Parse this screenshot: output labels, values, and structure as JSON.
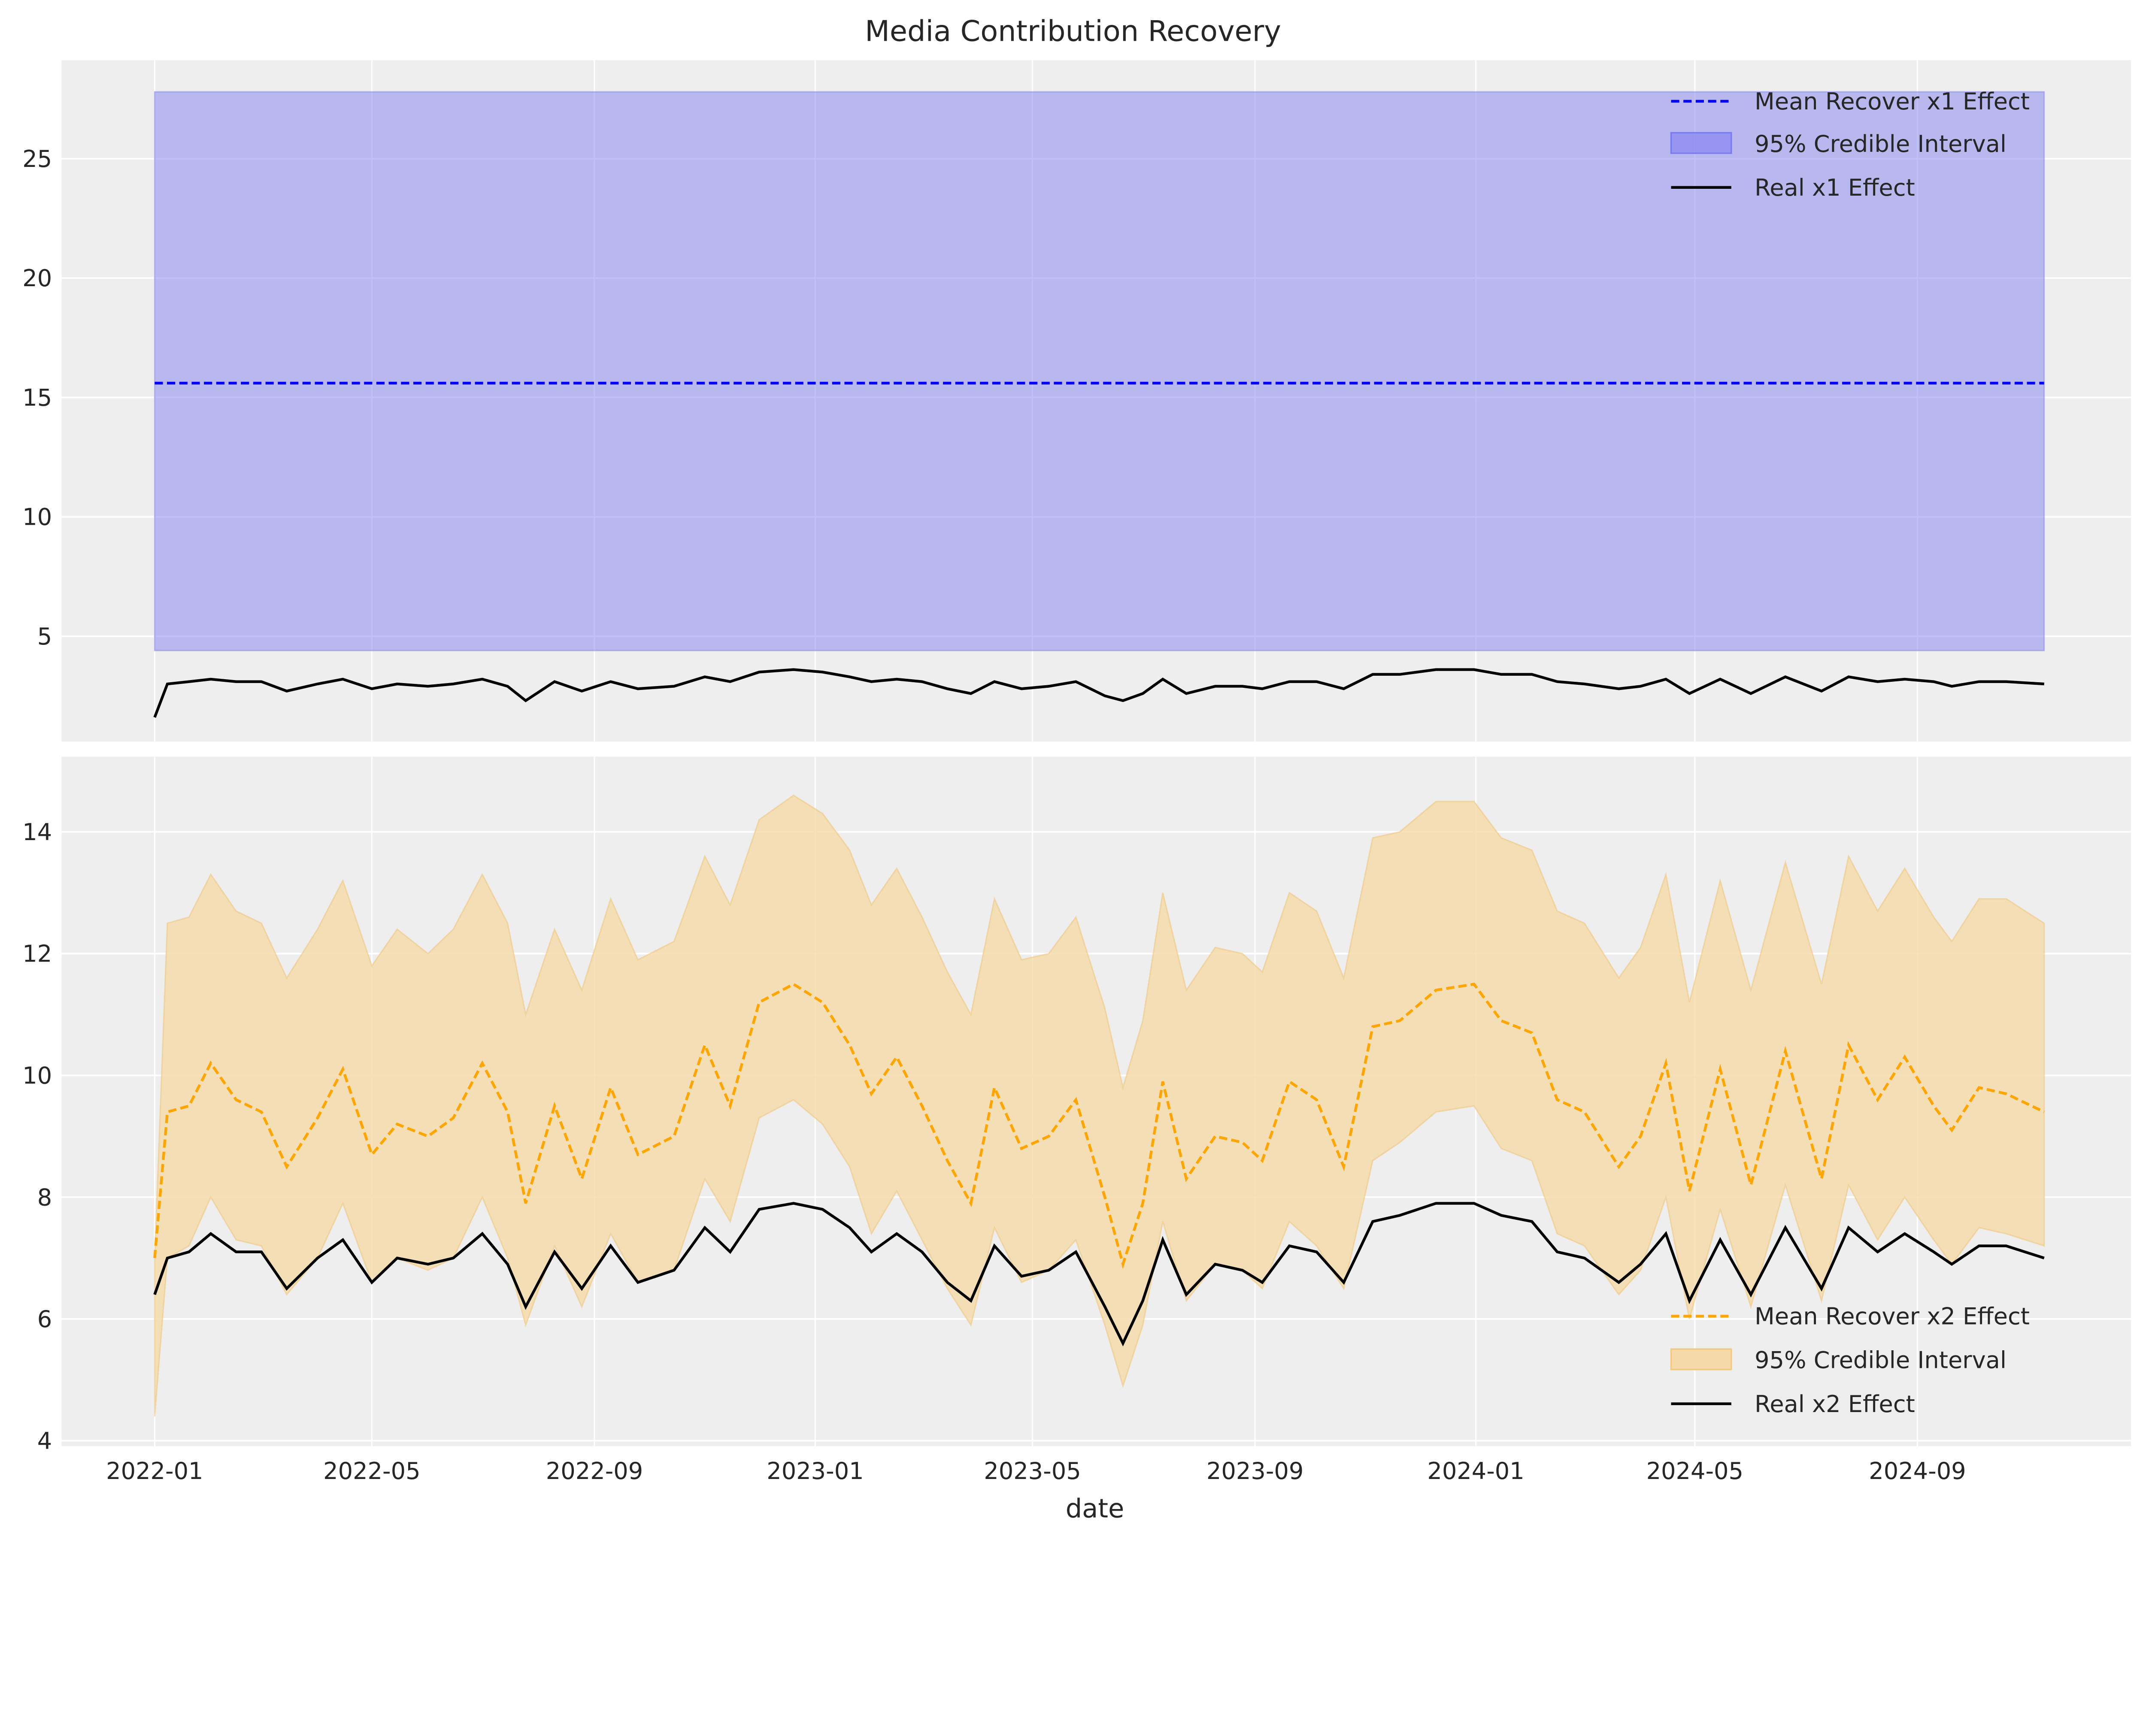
{
  "title": "Media Contribution Recovery",
  "colors": {
    "x1": "#0000ff",
    "x1_band": "#8c8cf0",
    "x2": "#ffa500",
    "x2_band": "#f5d9a8",
    "real": "#000000",
    "panel_bg": "#eeeeee",
    "grid": "#ffffff"
  },
  "chart_data": [
    {
      "type": "line",
      "panel": "top",
      "xlabel": "",
      "ylabel": "",
      "ylim": [
        0.9,
        28.3
      ],
      "yticks": [
        "5",
        "10",
        "15",
        "20",
        "25"
      ],
      "grid": true,
      "legend_position": "top-right",
      "legend": [
        "Mean Recover x1 Effect",
        "95% Credible Interval",
        "Real x1 Effect"
      ],
      "mean": 15.6,
      "ci_lower": 4.4,
      "ci_upper": 27.8,
      "real": [
        1.6,
        3.0,
        3.1,
        3.2,
        3.1,
        3.1,
        2.7,
        3.0,
        3.2,
        2.8,
        3.0,
        2.9,
        3.0,
        3.2,
        2.9,
        2.3,
        3.1,
        2.7,
        3.1,
        2.8,
        2.9,
        3.3,
        3.1,
        3.5,
        3.6,
        3.5,
        3.3,
        3.1,
        3.2,
        3.1,
        2.8,
        2.6,
        3.1,
        2.8,
        2.9,
        3.1,
        2.5,
        2.3,
        2.6,
        3.2,
        2.6,
        2.9,
        2.9,
        2.8,
        3.1,
        3.1,
        2.8,
        3.4,
        3.4,
        3.6,
        3.6,
        3.4,
        3.4,
        3.1,
        3.0,
        2.8,
        2.9,
        3.2,
        2.6,
        3.2,
        2.6,
        3.3,
        2.7,
        3.3,
        3.1,
        3.2,
        3.1,
        2.9,
        3.1,
        3.1,
        3.0
      ]
    },
    {
      "type": "line",
      "panel": "bottom",
      "xlabel": "date",
      "ylabel": "",
      "ylim": [
        3.95,
        15.2
      ],
      "yticks": [
        "4",
        "6",
        "8",
        "10",
        "12",
        "14"
      ],
      "xticks": [
        "2022-01",
        "2022-05",
        "2022-09",
        "2023-01",
        "2023-05",
        "2023-09",
        "2024-01",
        "2024-05",
        "2024-09"
      ],
      "grid": true,
      "legend_position": "bottom-right",
      "legend": [
        "Mean Recover x2 Effect",
        "95% Credible Interval",
        "Real x2 Effect"
      ],
      "x": [
        "2022-01-01",
        "2022-01-08",
        "2022-01-20",
        "2022-02-01",
        "2022-02-15",
        "2022-03-01",
        "2022-03-15",
        "2022-04-01",
        "2022-04-15",
        "2022-05-01",
        "2022-05-15",
        "2022-06-01",
        "2022-06-15",
        "2022-07-01",
        "2022-07-15",
        "2022-07-25",
        "2022-08-10",
        "2022-08-25",
        "2022-09-10",
        "2022-09-25",
        "2022-10-15",
        "2022-11-01",
        "2022-11-15",
        "2022-12-01",
        "2022-12-20",
        "2023-01-05",
        "2023-01-20",
        "2023-02-01",
        "2023-02-15",
        "2023-03-01",
        "2023-03-15",
        "2023-03-28",
        "2023-04-10",
        "2023-04-25",
        "2023-05-10",
        "2023-05-25",
        "2023-06-10",
        "2023-06-20",
        "2023-07-01",
        "2023-07-12",
        "2023-07-25",
        "2023-08-10",
        "2023-08-25",
        "2023-09-05",
        "2023-09-20",
        "2023-10-05",
        "2023-10-20",
        "2023-11-05",
        "2023-11-20",
        "2023-12-10",
        "2023-12-31",
        "2024-01-15",
        "2024-02-01",
        "2024-02-15",
        "2024-03-01",
        "2024-03-20",
        "2024-04-01",
        "2024-04-15",
        "2024-04-28",
        "2024-05-15",
        "2024-06-01",
        "2024-06-20",
        "2024-07-10",
        "2024-07-25",
        "2024-08-10",
        "2024-08-25",
        "2024-09-10",
        "2024-09-20",
        "2024-10-05",
        "2024-10-20",
        "2024-11-10"
      ],
      "mean": [
        7.0,
        9.4,
        9.5,
        10.2,
        9.6,
        9.4,
        8.5,
        9.3,
        10.1,
        8.7,
        9.2,
        9.0,
        9.3,
        10.2,
        9.4,
        7.9,
        9.5,
        8.3,
        9.8,
        8.7,
        9.0,
        10.5,
        9.5,
        11.2,
        11.5,
        11.2,
        10.5,
        9.7,
        10.3,
        9.5,
        8.6,
        7.9,
        9.8,
        8.8,
        9.0,
        9.6,
        8.0,
        6.9,
        7.9,
        9.9,
        8.3,
        9.0,
        8.9,
        8.6,
        9.9,
        9.6,
        8.5,
        10.8,
        10.9,
        11.4,
        11.5,
        10.9,
        10.7,
        9.6,
        9.4,
        8.5,
        9.0,
        10.2,
        8.1,
        10.1,
        8.2,
        10.4,
        8.3,
        10.5,
        9.6,
        10.3,
        9.5,
        9.1,
        9.8,
        9.7,
        9.4
      ],
      "ci_lower": [
        4.4,
        7.0,
        7.2,
        8.0,
        7.3,
        7.2,
        6.4,
        7.0,
        7.9,
        6.6,
        7.0,
        6.8,
        7.0,
        8.0,
        7.0,
        5.9,
        7.2,
        6.2,
        7.4,
        6.6,
        6.8,
        8.3,
        7.6,
        9.3,
        9.6,
        9.2,
        8.5,
        7.4,
        8.1,
        7.3,
        6.5,
        5.9,
        7.5,
        6.6,
        6.8,
        7.3,
        5.9,
        4.9,
        5.9,
        7.6,
        6.3,
        6.9,
        6.8,
        6.5,
        7.6,
        7.2,
        6.5,
        8.6,
        8.9,
        9.4,
        9.5,
        8.8,
        8.6,
        7.4,
        7.2,
        6.4,
        6.8,
        8.0,
        6.0,
        7.8,
        6.2,
        8.2,
        6.3,
        8.2,
        7.3,
        8.0,
        7.3,
        6.9,
        7.5,
        7.4,
        7.2
      ],
      "ci_upper": [
        7.0,
        12.5,
        12.6,
        13.3,
        12.7,
        12.5,
        11.6,
        12.4,
        13.2,
        11.8,
        12.4,
        12.0,
        12.4,
        13.3,
        12.5,
        11.0,
        12.4,
        11.4,
        12.9,
        11.9,
        12.2,
        13.6,
        12.8,
        14.2,
        14.6,
        14.3,
        13.7,
        12.8,
        13.4,
        12.6,
        11.7,
        11.0,
        12.9,
        11.9,
        12.0,
        12.6,
        11.1,
        9.8,
        10.9,
        13.0,
        11.4,
        12.1,
        12.0,
        11.7,
        13.0,
        12.7,
        11.6,
        13.9,
        14.0,
        14.5,
        14.5,
        13.9,
        13.7,
        12.7,
        12.5,
        11.6,
        12.1,
        13.3,
        11.2,
        13.2,
        11.4,
        13.5,
        11.5,
        13.6,
        12.7,
        13.4,
        12.6,
        12.2,
        12.9,
        12.9,
        12.5
      ],
      "real": [
        6.4,
        7.0,
        7.1,
        7.4,
        7.1,
        7.1,
        6.5,
        7.0,
        7.3,
        6.6,
        7.0,
        6.9,
        7.0,
        7.4,
        6.9,
        6.2,
        7.1,
        6.5,
        7.2,
        6.6,
        6.8,
        7.5,
        7.1,
        7.8,
        7.9,
        7.8,
        7.5,
        7.1,
        7.4,
        7.1,
        6.6,
        6.3,
        7.2,
        6.7,
        6.8,
        7.1,
        6.2,
        5.6,
        6.3,
        7.3,
        6.4,
        6.9,
        6.8,
        6.6,
        7.2,
        7.1,
        6.6,
        7.6,
        7.7,
        7.9,
        7.9,
        7.7,
        7.6,
        7.1,
        7.0,
        6.6,
        6.9,
        7.4,
        6.3,
        7.3,
        6.4,
        7.5,
        6.5,
        7.5,
        7.1,
        7.4,
        7.1,
        6.9,
        7.2,
        7.2,
        7.0
      ]
    }
  ]
}
